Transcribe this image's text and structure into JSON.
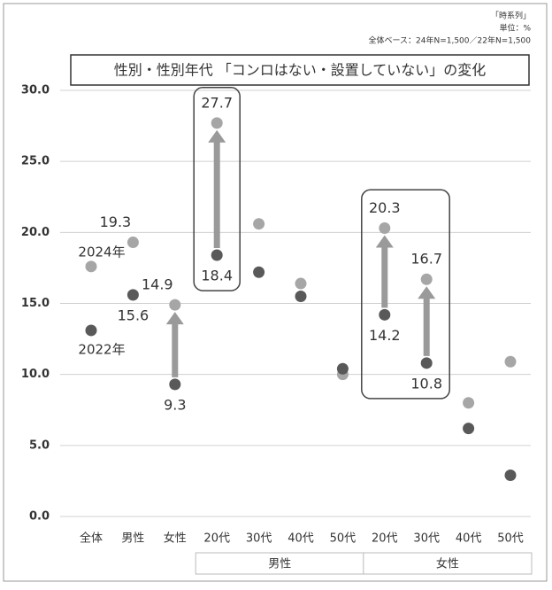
{
  "chart_data": {
    "type": "dot",
    "title": "性別・性別年代 「コンロはない・設置していない」の変化",
    "notes": [
      "「時系列」",
      "単位：%",
      "全体ベース：24年N=1,500／22年N=1,500"
    ],
    "categories": [
      "全体",
      "男性",
      "女性",
      "20代",
      "30代",
      "40代",
      "50代",
      "20代",
      "30代",
      "40代",
      "50代"
    ],
    "groups": [
      {
        "label": "男性",
        "from": 3,
        "to": 6
      },
      {
        "label": "女性",
        "from": 7,
        "to": 10
      }
    ],
    "series": [
      {
        "name": "2024年",
        "color": "#a6a6a6",
        "values": [
          17.6,
          19.3,
          14.9,
          27.7,
          20.6,
          16.4,
          10.0,
          20.3,
          16.7,
          8.0,
          10.9
        ],
        "value_labels": [
          null,
          "19.3",
          "14.9",
          "27.7",
          null,
          null,
          null,
          "20.3",
          "16.7",
          null,
          null
        ]
      },
      {
        "name": "2022年",
        "color": "#595959",
        "values": [
          13.1,
          15.6,
          9.3,
          18.4,
          17.2,
          15.5,
          10.4,
          14.2,
          10.8,
          6.2,
          2.9
        ],
        "value_labels": [
          null,
          "15.6",
          "9.3",
          "18.4",
          null,
          null,
          null,
          "14.2",
          "10.8",
          null,
          null
        ]
      }
    ],
    "ylim": [
      0,
      30
    ],
    "yticks": [
      {
        "value": 0,
        "label": "0.0"
      },
      {
        "value": 5,
        "label": "5.0"
      },
      {
        "value": 10,
        "label": "10.0"
      },
      {
        "value": 15,
        "label": "15.0"
      },
      {
        "value": 20,
        "label": "20.0"
      },
      {
        "value": 25,
        "label": "25.0"
      },
      {
        "value": 30,
        "label": "30.0"
      }
    ],
    "grid": true
  }
}
